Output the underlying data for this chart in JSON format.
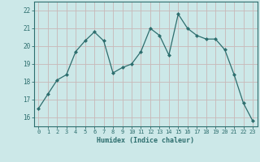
{
  "x": [
    0,
    1,
    2,
    3,
    4,
    5,
    6,
    7,
    8,
    9,
    10,
    11,
    12,
    13,
    14,
    15,
    16,
    17,
    18,
    19,
    20,
    21,
    22,
    23
  ],
  "y": [
    16.5,
    17.3,
    18.1,
    18.4,
    19.7,
    20.3,
    20.8,
    20.3,
    18.5,
    18.8,
    19.0,
    19.7,
    21.0,
    20.6,
    19.5,
    21.8,
    21.0,
    20.6,
    20.4,
    20.4,
    19.8,
    18.4,
    16.8,
    15.8
  ],
  "xlabel": "Humidex (Indice chaleur)",
  "ylim": [
    15.5,
    22.5
  ],
  "xlim": [
    -0.5,
    23.5
  ],
  "yticks": [
    16,
    17,
    18,
    19,
    20,
    21,
    22
  ],
  "xticks": [
    0,
    1,
    2,
    3,
    4,
    5,
    6,
    7,
    8,
    9,
    10,
    11,
    12,
    13,
    14,
    15,
    16,
    17,
    18,
    19,
    20,
    21,
    22,
    23
  ],
  "line_color": "#2d6e6e",
  "marker_color": "#2d6e6e",
  "bg_color": "#cce8e8",
  "grid_color_h": "#c8b8b8",
  "grid_color_v": "#c8b8b8",
  "tick_label_color": "#2d6e6e",
  "xlabel_color": "#2d6e6e"
}
